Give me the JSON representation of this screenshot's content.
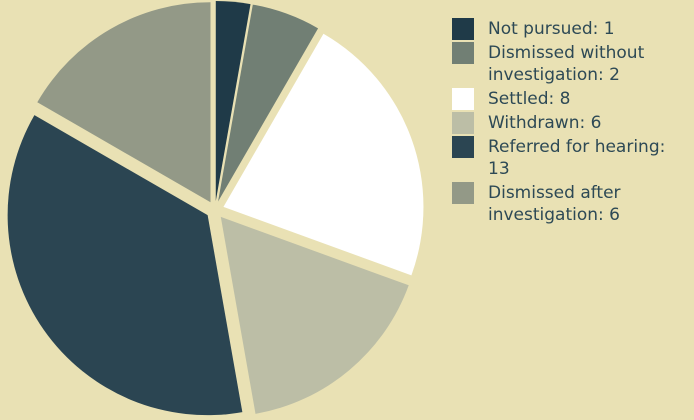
{
  "chart_data": {
    "type": "pie",
    "slices": [
      {
        "label": "Not pursued",
        "value": 1,
        "color": "#1f3a48",
        "legend_text": "Not pursued: 1"
      },
      {
        "label": "Dismissed without investigation",
        "value": 2,
        "color": "#717f74",
        "legend_text": "Dismissed without\ninvestigation: 2"
      },
      {
        "label": "Settled",
        "value": 8,
        "color": "#ffffff",
        "legend_text": "Settled: 8"
      },
      {
        "label": "Withdrawn",
        "value": 6,
        "color": "#bcbea6",
        "legend_text": "Withdrawn: 6"
      },
      {
        "label": "Referred for hearing",
        "value": 13,
        "color": "#2b4552",
        "legend_text": "Referred for hearing: 13"
      },
      {
        "label": "Dismissed after investigation",
        "value": 6,
        "color": "#939987",
        "legend_text": "Dismissed after\ninvestigation: 6"
      }
    ],
    "legend_position": "right",
    "exploded": true,
    "background": "#e9e1b4"
  }
}
